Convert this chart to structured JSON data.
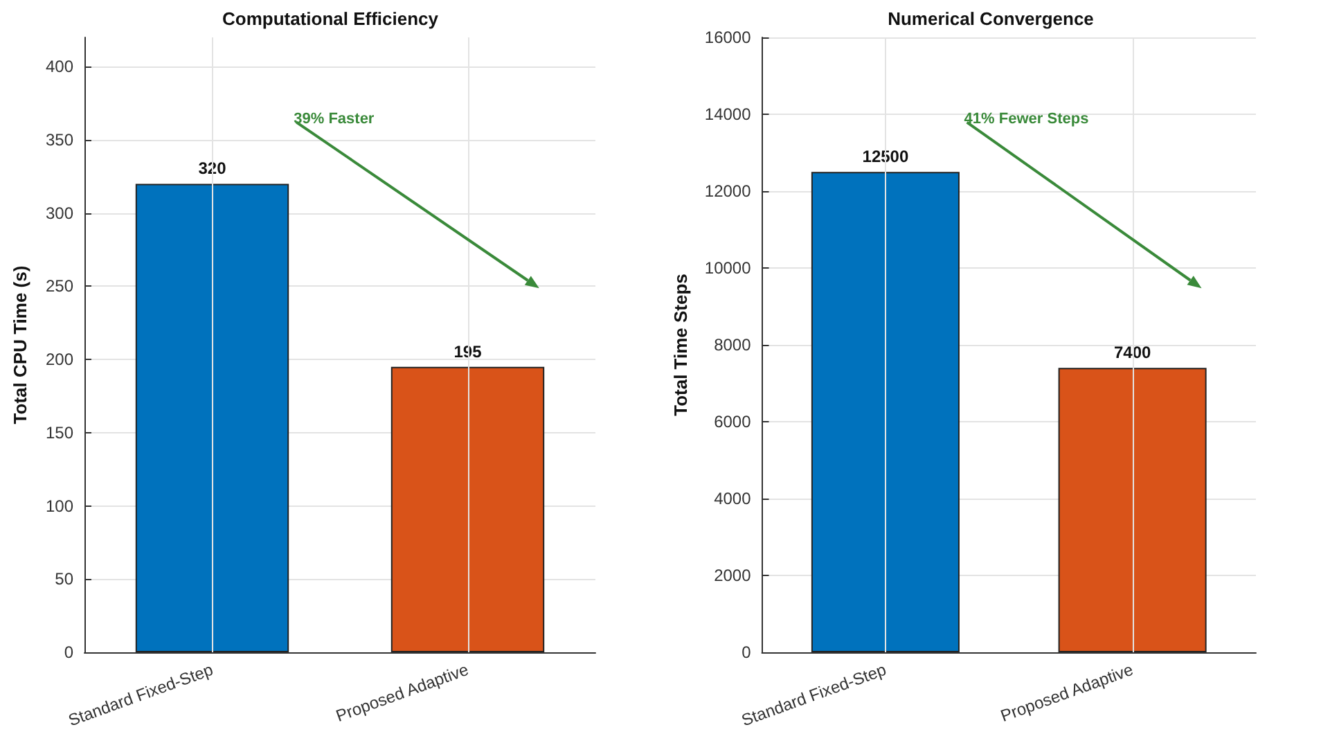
{
  "chart_data": [
    {
      "type": "bar",
      "title": "Computational Efficiency",
      "ylabel": "Total CPU Time (s)",
      "categories": [
        "Standard Fixed-Step",
        "Proposed Adaptive"
      ],
      "values": [
        320,
        195
      ],
      "colors": [
        "#0072bd",
        "#d95319"
      ],
      "ylim": [
        0,
        420
      ],
      "yticks": [
        0,
        50,
        100,
        150,
        200,
        250,
        300,
        350,
        400
      ],
      "grid": true,
      "data_labels": true,
      "annotations": [
        "39% Faster"
      ]
    },
    {
      "type": "bar",
      "title": "Numerical Convergence",
      "ylabel": "Total Time Steps",
      "categories": [
        "Standard Fixed-Step",
        "Proposed Adaptive"
      ],
      "values": [
        12500,
        7400
      ],
      "colors": [
        "#0072bd",
        "#d95319"
      ],
      "ylim": [
        0,
        16000
      ],
      "yticks": [
        0,
        2000,
        4000,
        6000,
        8000,
        10000,
        12000,
        14000,
        16000
      ],
      "grid": true,
      "data_labels": true,
      "annotations": [
        "41% Fewer Steps"
      ]
    }
  ]
}
